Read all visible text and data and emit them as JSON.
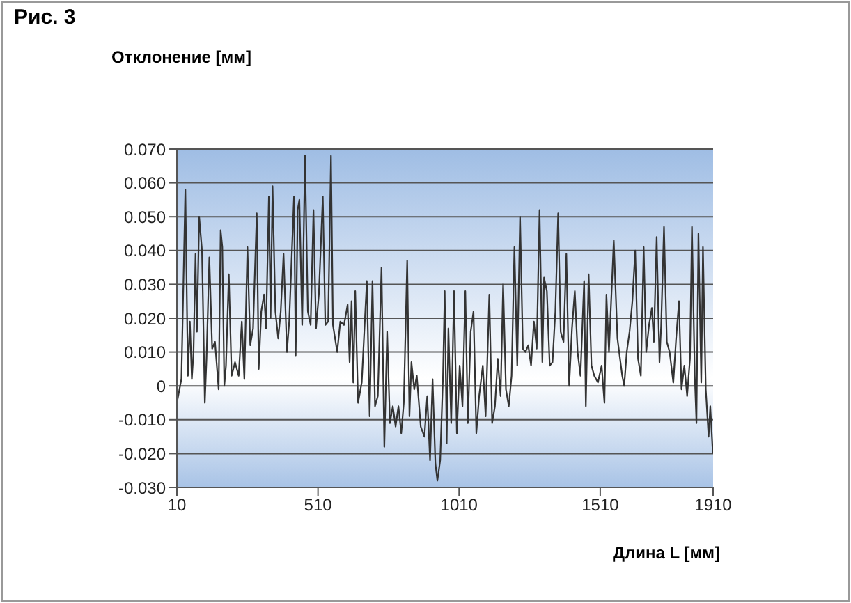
{
  "chart_data": {
    "type": "line",
    "title": "Рис. 3",
    "xlabel": "Длина L [мм]",
    "ylabel": "Отклонение [мм]",
    "x": [
      10,
      26,
      40,
      49,
      56,
      63,
      69,
      76,
      81,
      89,
      99,
      109,
      115,
      125,
      135,
      145,
      158,
      165,
      171,
      178,
      184,
      194,
      204,
      216,
      229,
      240,
      249,
      260,
      270,
      280,
      293,
      300,
      309,
      319,
      326,
      336,
      342,
      349,
      359,
      369,
      378,
      388,
      400,
      408,
      425,
      431,
      438,
      444,
      454,
      464,
      474,
      484,
      494,
      503,
      513,
      527,
      536,
      546,
      556,
      563,
      578,
      589,
      602,
      615,
      622,
      629,
      635,
      642,
      652,
      665,
      683,
      693,
      703,
      712,
      722,
      735,
      745,
      755,
      765,
      775,
      785,
      795,
      805,
      814,
      826,
      834,
      841,
      851,
      860,
      874,
      887,
      897,
      907,
      916,
      926,
      933,
      943,
      953,
      959,
      966,
      972,
      982,
      992,
      1002,
      1012,
      1022,
      1032,
      1041,
      1051,
      1061,
      1071,
      1081,
      1094,
      1104,
      1117,
      1127,
      1137,
      1147,
      1157,
      1166,
      1176,
      1186,
      1196,
      1206,
      1216,
      1226,
      1236,
      1245,
      1255,
      1265,
      1275,
      1285,
      1295,
      1305,
      1311,
      1321,
      1331,
      1341,
      1351,
      1361,
      1370,
      1380,
      1390,
      1400,
      1410,
      1420,
      1430,
      1440,
      1453,
      1459,
      1469,
      1479,
      1489,
      1502,
      1515,
      1525,
      1532,
      1541,
      1558,
      1571,
      1588,
      1595,
      1604,
      1614,
      1624,
      1634,
      1644,
      1654,
      1664,
      1673,
      1683,
      1693,
      1700,
      1710,
      1720,
      1726,
      1736,
      1746,
      1756,
      1769,
      1779,
      1789,
      1798,
      1808,
      1818,
      1828,
      1835,
      1845,
      1851,
      1858,
      1868,
      1874,
      1884,
      1894,
      1900,
      1909
    ],
    "series": [
      {
        "color": "#333333",
        "values": [
          -0.005,
          0.002,
          0.058,
          0.003,
          0.019,
          0.002,
          0.01,
          0.039,
          0.016,
          0.05,
          0.04,
          -0.005,
          0.008,
          0.038,
          0.011,
          0.013,
          -0.001,
          0.046,
          0.041,
          0.0,
          0.006,
          0.033,
          0.003,
          0.007,
          0.003,
          0.019,
          0.002,
          0.041,
          0.012,
          0.017,
          0.051,
          0.005,
          0.022,
          0.027,
          0.017,
          0.056,
          0.02,
          0.059,
          0.022,
          0.014,
          0.022,
          0.039,
          0.01,
          0.019,
          0.056,
          0.009,
          0.052,
          0.055,
          0.018,
          0.068,
          0.022,
          0.018,
          0.052,
          0.017,
          0.027,
          0.056,
          0.018,
          0.019,
          0.068,
          0.018,
          0.01,
          0.019,
          0.018,
          0.024,
          0.007,
          0.025,
          0.001,
          0.028,
          -0.005,
          0.001,
          0.031,
          -0.009,
          0.031,
          -0.006,
          -0.003,
          0.035,
          -0.018,
          0.016,
          -0.011,
          -0.006,
          -0.012,
          -0.006,
          -0.014,
          -0.005,
          0.037,
          -0.009,
          0.007,
          -0.001,
          0.003,
          -0.012,
          -0.015,
          -0.003,
          -0.022,
          0.002,
          -0.023,
          -0.028,
          -0.022,
          0.003,
          0.028,
          -0.017,
          0.017,
          -0.011,
          0.028,
          -0.014,
          0.006,
          -0.006,
          0.028,
          -0.011,
          0.016,
          0.022,
          -0.014,
          -0.003,
          0.006,
          -0.009,
          0.027,
          -0.011,
          -0.006,
          0.008,
          -0.003,
          0.03,
          -0.001,
          -0.006,
          0.003,
          0.041,
          0.006,
          0.05,
          0.011,
          0.01,
          0.012,
          0.006,
          0.019,
          0.011,
          0.052,
          0.007,
          0.032,
          0.028,
          0.006,
          0.007,
          0.022,
          0.051,
          0.016,
          0.013,
          0.039,
          0.0,
          0.017,
          0.028,
          0.01,
          0.003,
          0.031,
          -0.006,
          0.033,
          0.006,
          0.003,
          0.001,
          0.006,
          -0.005,
          0.027,
          0.01,
          0.043,
          0.014,
          0.003,
          0.0,
          0.01,
          0.016,
          0.025,
          0.04,
          0.008,
          0.003,
          0.041,
          0.01,
          0.018,
          0.023,
          0.013,
          0.044,
          0.007,
          0.018,
          0.047,
          0.013,
          0.01,
          0.001,
          0.014,
          0.025,
          -0.001,
          0.006,
          -0.003,
          0.008,
          0.047,
          0.003,
          -0.011,
          0.045,
          0.001,
          0.041,
          -0.001,
          -0.015,
          -0.006,
          -0.02
        ]
      }
    ],
    "xlim": [
      10,
      1910
    ],
    "xticks": [
      10,
      510,
      1010,
      1510,
      1910
    ],
    "ylim": [
      -0.03,
      0.07
    ],
    "yticks": [
      {
        "value": -0.03,
        "label": "-0.030"
      },
      {
        "value": -0.02,
        "label": "-0.020"
      },
      {
        "value": -0.01,
        "label": "-0.010"
      },
      0,
      {
        "value": 0.01,
        "label": "0.010"
      },
      {
        "value": 0.02,
        "label": "0.020"
      },
      {
        "value": 0.03,
        "label": "0.030"
      },
      {
        "value": 0.04,
        "label": "0.040"
      },
      {
        "value": 0.05,
        "label": "0.050"
      },
      {
        "value": 0.06,
        "label": "0.060"
      },
      {
        "value": 0.07,
        "label": "0.070"
      }
    ],
    "grid": "y",
    "marker": "none",
    "line_style": "solid"
  }
}
